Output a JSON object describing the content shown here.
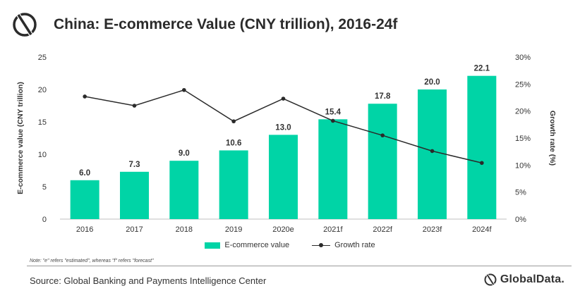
{
  "header": {
    "title": "China: E-commerce Value (CNY trillion), 2016-24f",
    "logo_icon": "globaldata-logo-icon"
  },
  "chart_data": {
    "type": "bar",
    "categories": [
      "2016",
      "2017",
      "2018",
      "2019",
      "2020e",
      "2021f",
      "2022f",
      "2023f",
      "2024f"
    ],
    "series": [
      {
        "name": "E-commerce value",
        "type": "bar",
        "axis": "left",
        "color": "#00d4a6",
        "values": [
          6.0,
          7.3,
          9.0,
          10.6,
          13.0,
          15.4,
          17.8,
          20.0,
          22.1
        ],
        "labels": [
          "6.0",
          "7.3",
          "9.0",
          "10.6",
          "13.0",
          "15.4",
          "17.8",
          "20.0",
          "22.1"
        ]
      },
      {
        "name": "Growth rate",
        "type": "line",
        "axis": "right",
        "color": "#2a2a2a",
        "values": [
          22.7,
          21.0,
          23.9,
          18.1,
          22.3,
          18.2,
          15.5,
          12.6,
          10.4
        ]
      }
    ],
    "ylabel": "E-commerce value (CNY trillion)",
    "ylim": [
      0,
      25
    ],
    "yticks": [
      "0",
      "5",
      "10",
      "15",
      "20",
      "25"
    ],
    "y2label": "Growth rate (%)",
    "y2lim": [
      0,
      30
    ],
    "y2ticks": [
      "0%",
      "5%",
      "10%",
      "15%",
      "20%",
      "25%",
      "30%"
    ],
    "grid": false,
    "legend_position": "bottom"
  },
  "legend": {
    "bar_label": "E-commerce value",
    "line_label": "Growth rate"
  },
  "footer": {
    "note": "Note: \"e\" refers \"estimated\", whereas \"f\" refers \"forecast\"",
    "source": "Source: Global Banking and Payments Intelligence Center",
    "brand": "GlobalData."
  }
}
